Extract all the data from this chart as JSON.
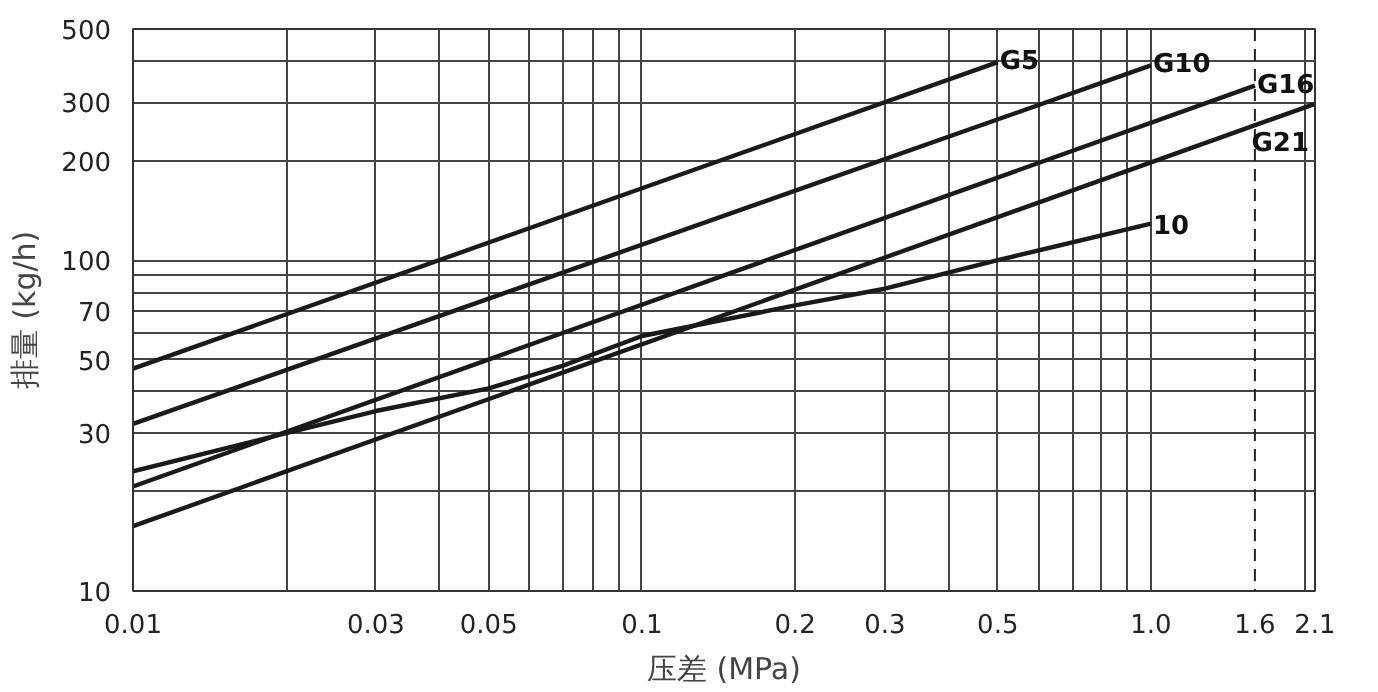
{
  "chart_data": {
    "type": "line",
    "xlabel": "压差 (MPa)",
    "ylabel": "排量 (kg/h)",
    "log": "xy",
    "grid": true,
    "marker": "none",
    "line_style": "solid",
    "xlim": [
      0.01,
      2.1
    ],
    "ylim": [
      10,
      500
    ],
    "xticks": [
      0.01,
      {
        "value": 0.02,
        "label": null
      },
      0.03,
      {
        "value": 0.04,
        "label": null
      },
      0.05,
      {
        "value": 0.06,
        "label": null
      },
      {
        "value": 0.07,
        "label": null
      },
      {
        "value": 0.08,
        "label": null
      },
      {
        "value": 0.09,
        "label": null
      },
      0.1,
      0.2,
      0.3,
      {
        "value": 0.4,
        "label": null
      },
      0.5,
      {
        "value": 0.6,
        "label": null
      },
      {
        "value": 0.7,
        "label": null
      },
      {
        "value": 0.8,
        "label": null
      },
      {
        "value": 0.9,
        "label": null
      },
      {
        "value": 1.0,
        "label": "1.0"
      },
      1.6,
      {
        "value": 2.0,
        "label": null
      },
      2.1
    ],
    "yticks": [
      10,
      {
        "value": 20,
        "label": null
      },
      30,
      {
        "value": 40,
        "label": null
      },
      50,
      {
        "value": 60,
        "label": null
      },
      70,
      {
        "value": 80,
        "label": null
      },
      {
        "value": 90,
        "label": null
      },
      100,
      200,
      300,
      {
        "value": 400,
        "label": null
      },
      500
    ],
    "ref_lines": [
      {
        "axis": "x",
        "value": 1.6,
        "label": null,
        "line_style": "dashed",
        "color": "#222222"
      }
    ],
    "series": [
      {
        "name": "G5",
        "color": "#1a1a1a",
        "x": [
          0.01,
          0.5
        ],
        "values": [
          47,
          397
        ]
      },
      {
        "name": "G10",
        "color": "#1a1a1a",
        "x": [
          0.01,
          1.0
        ],
        "values": [
          32,
          388
        ]
      },
      {
        "name": "G16",
        "color": "#1a1a1a",
        "x": [
          0.01,
          1.6
        ],
        "values": [
          20.7,
          337
        ]
      },
      {
        "name": "G21",
        "color": "#1a1a1a",
        "x": [
          0.01,
          2.1
        ],
        "values": [
          15.7,
          297
        ]
      },
      {
        "name": "10",
        "color": "#1a1a1a",
        "x": [
          0.01,
          0.02,
          0.03,
          0.05,
          0.07,
          0.1,
          0.2,
          0.3,
          0.5,
          1.0
        ],
        "values": [
          23,
          30,
          35,
          41,
          48,
          59,
          73,
          82,
          100,
          129
        ]
      }
    ]
  }
}
